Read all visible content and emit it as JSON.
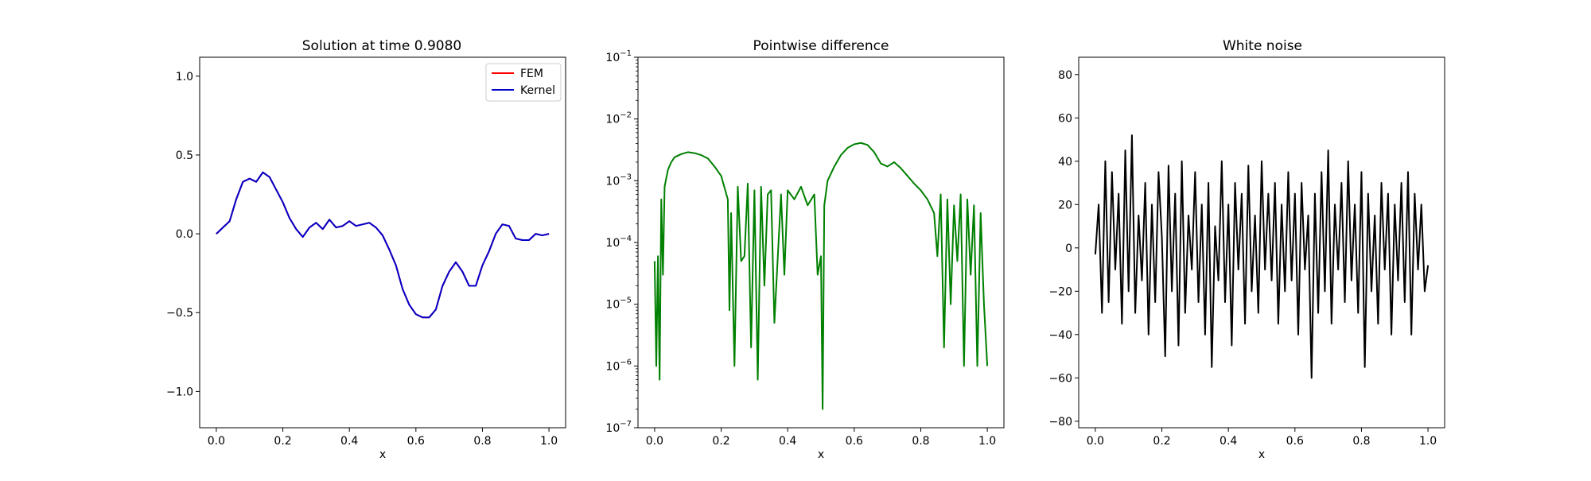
{
  "chart_data": [
    {
      "type": "line",
      "title": "Solution at time 0.9080",
      "xlabel": "x",
      "ylabel": "",
      "xlim": [
        -0.05,
        1.05
      ],
      "ylim": [
        -1.23,
        1.12
      ],
      "xticks": [
        "0.0",
        "0.2",
        "0.4",
        "0.6",
        "0.8",
        "1.0"
      ],
      "yticks": [
        "1.0",
        "0.5",
        "0.0",
        "−0.5",
        "−1.0"
      ],
      "legend_position": "top-right",
      "series": [
        {
          "name": "FEM",
          "color": "#ff0000",
          "x": [
            0.0,
            0.02,
            0.04,
            0.06,
            0.08,
            0.1,
            0.12,
            0.14,
            0.16,
            0.18,
            0.2,
            0.22,
            0.24,
            0.26,
            0.28,
            0.3,
            0.32,
            0.34,
            0.36,
            0.38,
            0.4,
            0.42,
            0.44,
            0.46,
            0.48,
            0.5,
            0.52,
            0.54,
            0.56,
            0.58,
            0.6,
            0.62,
            0.64,
            0.66,
            0.68,
            0.7,
            0.72,
            0.74,
            0.76,
            0.78,
            0.8,
            0.82,
            0.84,
            0.86,
            0.88,
            0.9,
            0.92,
            0.94,
            0.96,
            0.98,
            1.0
          ],
          "values": [
            0.0,
            0.04,
            0.08,
            0.22,
            0.33,
            0.35,
            0.33,
            0.39,
            0.36,
            0.28,
            0.2,
            0.1,
            0.03,
            -0.02,
            0.04,
            0.07,
            0.03,
            0.09,
            0.04,
            0.05,
            0.08,
            0.05,
            0.06,
            0.07,
            0.04,
            -0.01,
            -0.1,
            -0.2,
            -0.35,
            -0.45,
            -0.51,
            -0.53,
            -0.53,
            -0.48,
            -0.33,
            -0.24,
            -0.18,
            -0.24,
            -0.33,
            -0.33,
            -0.2,
            -0.11,
            0.0,
            0.06,
            0.05,
            -0.03,
            -0.04,
            -0.04,
            0.0,
            -0.01,
            0.0
          ]
        },
        {
          "name": "Kernel",
          "color": "#0000cc",
          "x": [
            0.0,
            0.02,
            0.04,
            0.06,
            0.08,
            0.1,
            0.12,
            0.14,
            0.16,
            0.18,
            0.2,
            0.22,
            0.24,
            0.26,
            0.28,
            0.3,
            0.32,
            0.34,
            0.36,
            0.38,
            0.4,
            0.42,
            0.44,
            0.46,
            0.48,
            0.5,
            0.52,
            0.54,
            0.56,
            0.58,
            0.6,
            0.62,
            0.64,
            0.66,
            0.68,
            0.7,
            0.72,
            0.74,
            0.76,
            0.78,
            0.8,
            0.82,
            0.84,
            0.86,
            0.88,
            0.9,
            0.92,
            0.94,
            0.96,
            0.98,
            1.0
          ],
          "values": [
            0.0,
            0.04,
            0.08,
            0.22,
            0.33,
            0.35,
            0.33,
            0.39,
            0.36,
            0.28,
            0.2,
            0.1,
            0.03,
            -0.02,
            0.04,
            0.07,
            0.03,
            0.09,
            0.04,
            0.05,
            0.08,
            0.05,
            0.06,
            0.07,
            0.04,
            -0.01,
            -0.1,
            -0.2,
            -0.35,
            -0.45,
            -0.51,
            -0.53,
            -0.53,
            -0.48,
            -0.33,
            -0.24,
            -0.18,
            -0.24,
            -0.33,
            -0.33,
            -0.2,
            -0.11,
            0.0,
            0.06,
            0.05,
            -0.03,
            -0.04,
            -0.04,
            0.0,
            -0.01,
            0.0
          ]
        }
      ]
    },
    {
      "type": "line",
      "title": "Pointwise difference",
      "xlabel": "x",
      "ylabel": "",
      "xlim": [
        -0.05,
        1.05
      ],
      "ylim": [
        1e-07,
        0.1
      ],
      "yscale": "log",
      "xticks": [
        "0.0",
        "0.2",
        "0.4",
        "0.6",
        "0.8",
        "1.0"
      ],
      "yticks": [
        {
          "base": "10",
          "exp": "−1",
          "value": 0.1
        },
        {
          "base": "10",
          "exp": "−2",
          "value": 0.01
        },
        {
          "base": "10",
          "exp": "−3",
          "value": 0.001
        },
        {
          "base": "10",
          "exp": "−4",
          "value": 0.0001
        },
        {
          "base": "10",
          "exp": "−5",
          "value": 1e-05
        },
        {
          "base": "10",
          "exp": "−6",
          "value": 1e-06
        },
        {
          "base": "10",
          "exp": "−7",
          "value": 1e-07
        }
      ],
      "series": [
        {
          "color": "#008000",
          "x": [
            0.0,
            0.005,
            0.01,
            0.015,
            0.02,
            0.025,
            0.03,
            0.04,
            0.05,
            0.06,
            0.08,
            0.1,
            0.12,
            0.14,
            0.16,
            0.18,
            0.2,
            0.22,
            0.225,
            0.23,
            0.24,
            0.25,
            0.26,
            0.27,
            0.28,
            0.29,
            0.3,
            0.31,
            0.32,
            0.33,
            0.34,
            0.35,
            0.36,
            0.38,
            0.39,
            0.4,
            0.42,
            0.44,
            0.46,
            0.48,
            0.49,
            0.5,
            0.505,
            0.51,
            0.52,
            0.54,
            0.56,
            0.58,
            0.6,
            0.62,
            0.64,
            0.66,
            0.68,
            0.7,
            0.72,
            0.74,
            0.76,
            0.78,
            0.8,
            0.82,
            0.84,
            0.85,
            0.86,
            0.87,
            0.88,
            0.89,
            0.9,
            0.91,
            0.92,
            0.93,
            0.94,
            0.95,
            0.96,
            0.97,
            0.98,
            0.99,
            1.0
          ],
          "values": [
            5e-05,
            1e-06,
            6e-05,
            6e-07,
            0.0005,
            3e-05,
            0.0008,
            0.0015,
            0.002,
            0.0024,
            0.0027,
            0.0029,
            0.0028,
            0.0026,
            0.0023,
            0.0017,
            0.0012,
            0.0005,
            8e-06,
            0.0003,
            1e-06,
            0.0008,
            5e-05,
            6e-05,
            0.0009,
            2e-06,
            0.0007,
            6e-07,
            0.0008,
            2e-05,
            0.0006,
            0.0007,
            5e-06,
            0.0006,
            3e-05,
            0.0007,
            0.0005,
            0.0008,
            0.0004,
            0.0006,
            3e-05,
            6e-05,
            2e-07,
            0.0004,
            0.001,
            0.0017,
            0.0026,
            0.0034,
            0.0039,
            0.0041,
            0.0038,
            0.0029,
            0.0019,
            0.0017,
            0.002,
            0.0016,
            0.0012,
            0.0009,
            0.0007,
            0.0005,
            0.0003,
            6e-05,
            0.0006,
            2e-06,
            0.0005,
            1e-05,
            0.0004,
            5e-05,
            0.0006,
            1e-06,
            0.0005,
            3e-05,
            0.0004,
            1e-06,
            0.0003,
            1e-05,
            1e-06
          ]
        }
      ]
    },
    {
      "type": "line",
      "title": "White noise",
      "xlabel": "x",
      "ylabel": "",
      "xlim": [
        -0.05,
        1.05
      ],
      "ylim": [
        -83,
        88
      ],
      "xticks": [
        "0.0",
        "0.2",
        "0.4",
        "0.6",
        "0.8",
        "1.0"
      ],
      "yticks": [
        "80",
        "60",
        "40",
        "20",
        "0",
        "−20",
        "−40",
        "−60",
        "−80"
      ],
      "series": [
        {
          "color": "#000000",
          "x": [
            0.0,
            0.01,
            0.02,
            0.03,
            0.04,
            0.05,
            0.06,
            0.07,
            0.08,
            0.09,
            0.1,
            0.11,
            0.12,
            0.13,
            0.14,
            0.15,
            0.16,
            0.17,
            0.18,
            0.19,
            0.2,
            0.21,
            0.22,
            0.23,
            0.24,
            0.25,
            0.26,
            0.27,
            0.28,
            0.29,
            0.3,
            0.31,
            0.32,
            0.33,
            0.34,
            0.35,
            0.36,
            0.37,
            0.38,
            0.39,
            0.4,
            0.41,
            0.42,
            0.43,
            0.44,
            0.45,
            0.46,
            0.47,
            0.48,
            0.49,
            0.5,
            0.51,
            0.52,
            0.53,
            0.54,
            0.55,
            0.56,
            0.57,
            0.58,
            0.59,
            0.6,
            0.61,
            0.62,
            0.63,
            0.64,
            0.65,
            0.66,
            0.67,
            0.68,
            0.69,
            0.7,
            0.71,
            0.72,
            0.73,
            0.74,
            0.75,
            0.76,
            0.77,
            0.78,
            0.79,
            0.8,
            0.81,
            0.82,
            0.83,
            0.84,
            0.85,
            0.86,
            0.87,
            0.88,
            0.89,
            0.9,
            0.91,
            0.92,
            0.93,
            0.94,
            0.95,
            0.96,
            0.97,
            0.98,
            0.99,
            1.0
          ],
          "values": [
            -3,
            20,
            -30,
            40,
            -25,
            35,
            -10,
            25,
            -35,
            45,
            -20,
            52,
            -30,
            15,
            -15,
            30,
            -40,
            20,
            -25,
            35,
            5,
            -50,
            38,
            -20,
            25,
            -45,
            40,
            -30,
            15,
            -10,
            35,
            -25,
            20,
            -40,
            30,
            -55,
            10,
            -15,
            40,
            -25,
            20,
            -45,
            30,
            -10,
            25,
            -35,
            38,
            -20,
            15,
            -30,
            40,
            -10,
            25,
            -15,
            30,
            -35,
            20,
            -20,
            35,
            -15,
            25,
            -40,
            30,
            -10,
            15,
            -60,
            25,
            -30,
            35,
            -20,
            45,
            -35,
            20,
            -10,
            30,
            -25,
            40,
            -15,
            20,
            -30,
            35,
            -55,
            25,
            -20,
            15,
            -35,
            30,
            -10,
            25,
            -40,
            20,
            -15,
            30,
            -25,
            35,
            -40,
            25,
            -10,
            20,
            -20,
            -8
          ]
        }
      ]
    }
  ]
}
